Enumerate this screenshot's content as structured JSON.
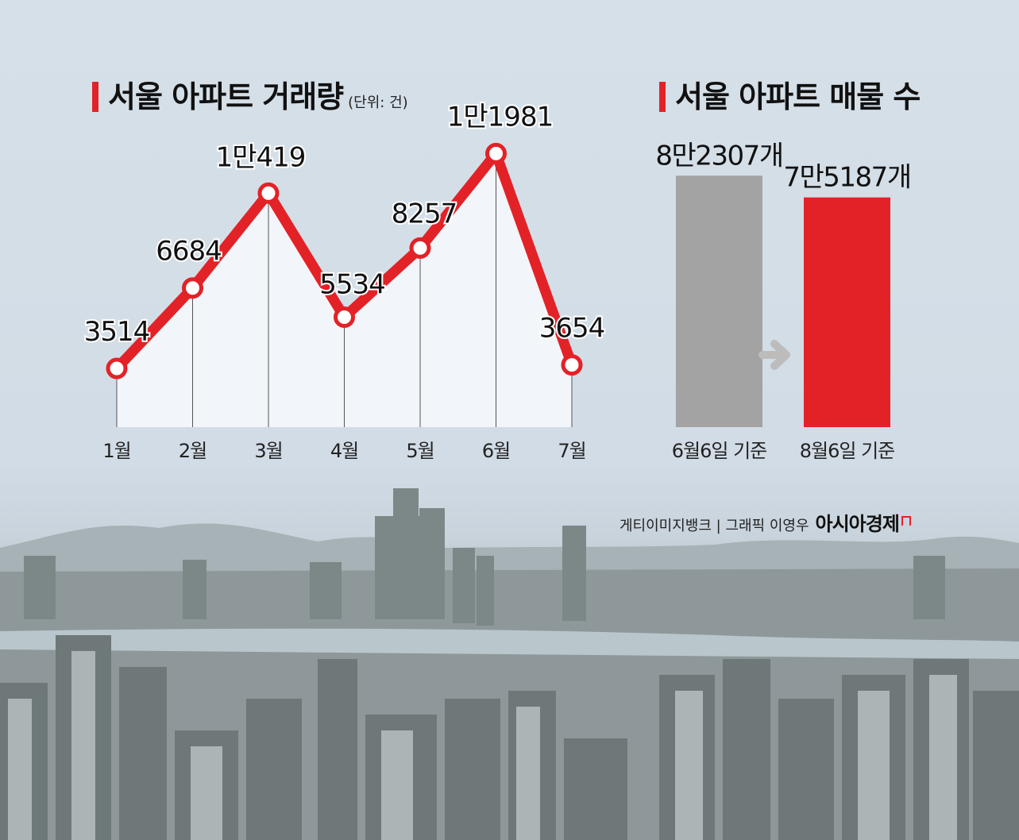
{
  "left_title": "서울 아파트 거래량",
  "left_unit": "(단위: 건)",
  "right_title": "서울 아파트 매물 수",
  "credit": {
    "text": "게티이미지뱅크 | 그래픽 이영우",
    "brand": "아시아경제"
  },
  "colors": {
    "accent": "#e32227",
    "gray_bar": "#a3a3a3",
    "arrow": "#bcbcbc"
  },
  "chart_data": [
    {
      "type": "line",
      "title": "서울 아파트 거래량",
      "unit": "(단위: 건)",
      "categories": [
        "1월",
        "2월",
        "3월",
        "4월",
        "5월",
        "6월",
        "7월"
      ],
      "values": [
        3514,
        6684,
        10419,
        5534,
        8257,
        11981,
        3654
      ],
      "labels": [
        "3514",
        "6684",
        "1만419",
        "5534",
        "8257",
        "1만1981",
        "3654"
      ],
      "ylim": [
        0,
        13000
      ]
    },
    {
      "type": "bar",
      "title": "서울 아파트 매물 수",
      "categories": [
        "6월6일 기준",
        "8월6일 기준"
      ],
      "values": [
        82307,
        75187
      ],
      "labels": [
        "8만2307개",
        "7만5187개"
      ],
      "colors": [
        "#a3a3a3",
        "#e32227"
      ]
    }
  ]
}
